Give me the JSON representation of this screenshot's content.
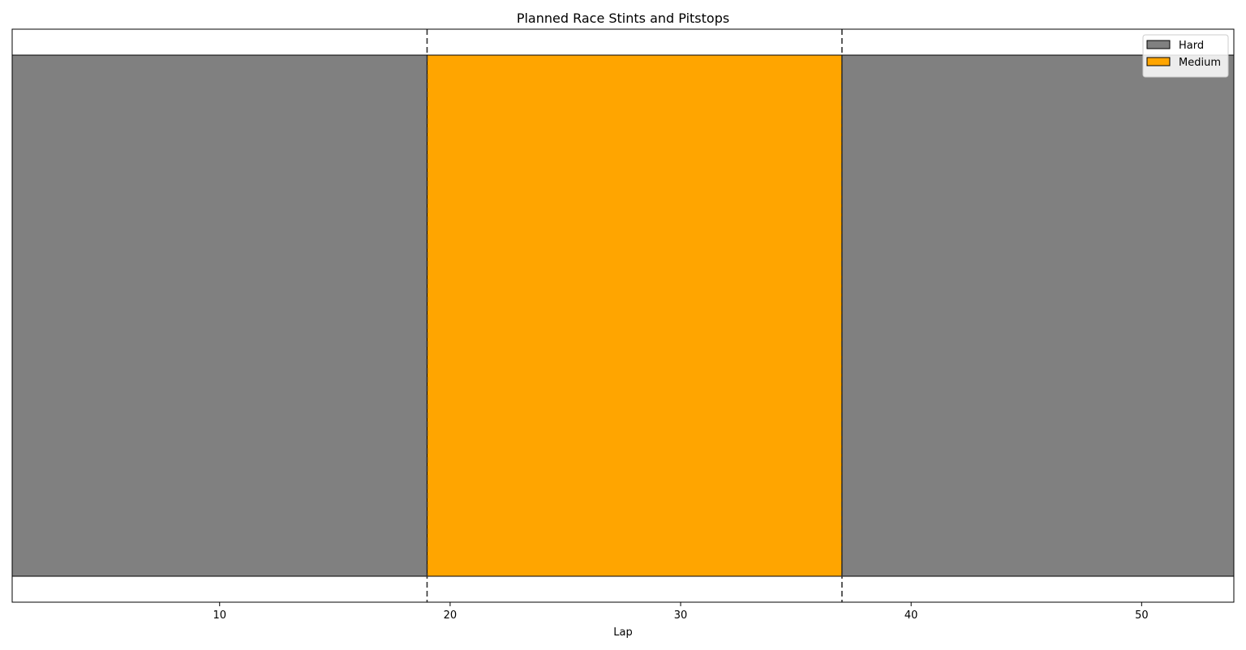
{
  "chart_data": {
    "type": "bar",
    "orientation": "horizontal-stints",
    "title": "Planned Race Stints and Pitstops",
    "xlabel": "Lap",
    "ylabel": "",
    "xlim": [
      1,
      54
    ],
    "x_ticks": [
      10,
      20,
      30,
      40,
      50
    ],
    "grid": false,
    "legend_position": "top-right",
    "stints": [
      {
        "compound": "Hard",
        "start_lap": 1,
        "end_lap": 19,
        "color": "#808080"
      },
      {
        "compound": "Medium",
        "start_lap": 19,
        "end_lap": 37,
        "color": "#FFA500"
      },
      {
        "compound": "Hard",
        "start_lap": 37,
        "end_lap": 54,
        "color": "#808080"
      }
    ],
    "pitstops": [
      19,
      37
    ],
    "legend": [
      {
        "label": "Hard",
        "color": "#808080"
      },
      {
        "label": "Medium",
        "color": "#FFA500"
      }
    ]
  }
}
